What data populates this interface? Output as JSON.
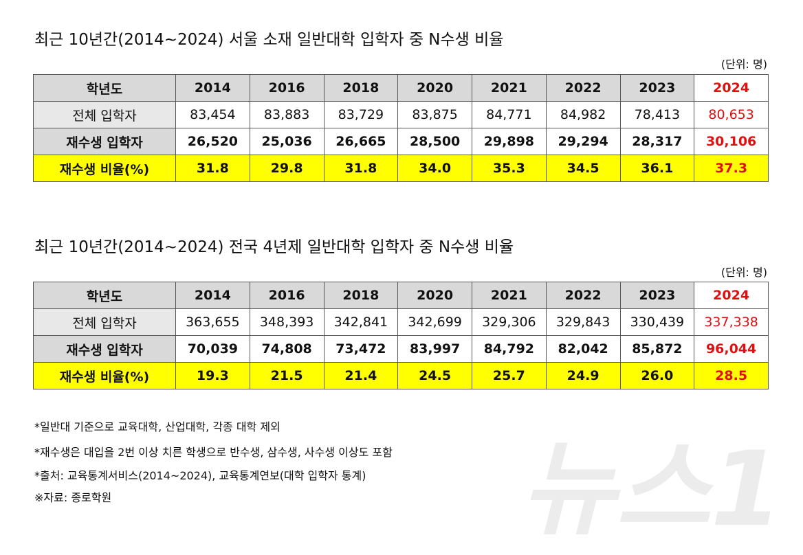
{
  "tables": [
    {
      "title": "최근 10년간(2014~2024) 서울 소재 일반대학 입학자 중 N수생 비율",
      "unit": "(단위: 명)",
      "header": [
        "학년도",
        "2014",
        "2016",
        "2018",
        "2020",
        "2021",
        "2022",
        "2023",
        "2024"
      ],
      "rows": [
        [
          "전체 입학자",
          "83,454",
          "83,883",
          "83,729",
          "83,875",
          "84,771",
          "84,982",
          "78,413",
          "80,653"
        ],
        [
          "재수생 입학자",
          "26,520",
          "25,036",
          "26,665",
          "28,500",
          "29,898",
          "29,294",
          "28,317",
          "30,106"
        ],
        [
          "재수생 비율(%)",
          "31.8",
          "29.8",
          "31.8",
          "34.0",
          "35.3",
          "34.5",
          "36.1",
          "37.3"
        ]
      ]
    },
    {
      "title": "최근 10년간(2014~2024) 전국 4년제 일반대학 입학자 중 N수생 비율",
      "unit": "(단위: 명)",
      "header": [
        "학년도",
        "2014",
        "2016",
        "2018",
        "2020",
        "2021",
        "2022",
        "2023",
        "2024"
      ],
      "rows": [
        [
          "전체 입학자",
          "363,655",
          "348,393",
          "342,841",
          "342,699",
          "329,306",
          "329,843",
          "330,439",
          "337,338"
        ],
        [
          "재수생 입학자",
          "70,039",
          "74,808",
          "73,472",
          "83,997",
          "84,792",
          "82,042",
          "85,872",
          "96,044"
        ],
        [
          "재수생 비율(%)",
          "19.3",
          "21.5",
          "21.4",
          "24.5",
          "25.7",
          "24.9",
          "26.0",
          "28.5"
        ]
      ]
    }
  ],
  "notes": [
    "*일반대 기준으로 교육대학, 산업대학, 각종 대학 제외",
    "*재수생은 대입을 2번 이상 치른 학생으로 반수생, 삼수생, 사수생 이상도 포함",
    "*출처: 교육통계서비스(2014~2024), 교육통계연보(대학 입학자 통계)",
    "※자료: 종로학원"
  ],
  "watermark": "뉴스1"
}
